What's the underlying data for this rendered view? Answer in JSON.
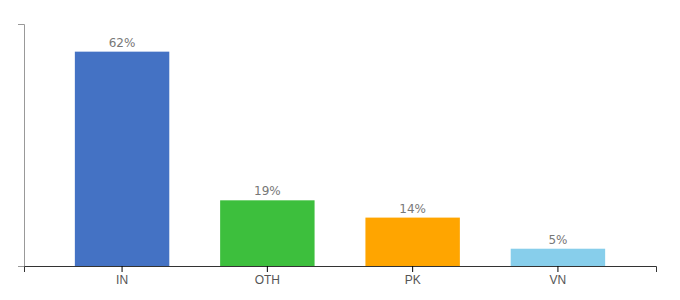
{
  "chart_data": {
    "type": "bar",
    "categories": [
      "IN",
      "OTH",
      "PK",
      "VN"
    ],
    "values": [
      62,
      19,
      14,
      5
    ],
    "value_labels": [
      "62%",
      "19%",
      "14%",
      "5%"
    ],
    "data_labels": true,
    "colors": [
      "#4472C4",
      "#3DBF3D",
      "#FFA500",
      "#87CEEB"
    ],
    "ylim": [
      0,
      70
    ],
    "tick_labels": "x"
  }
}
